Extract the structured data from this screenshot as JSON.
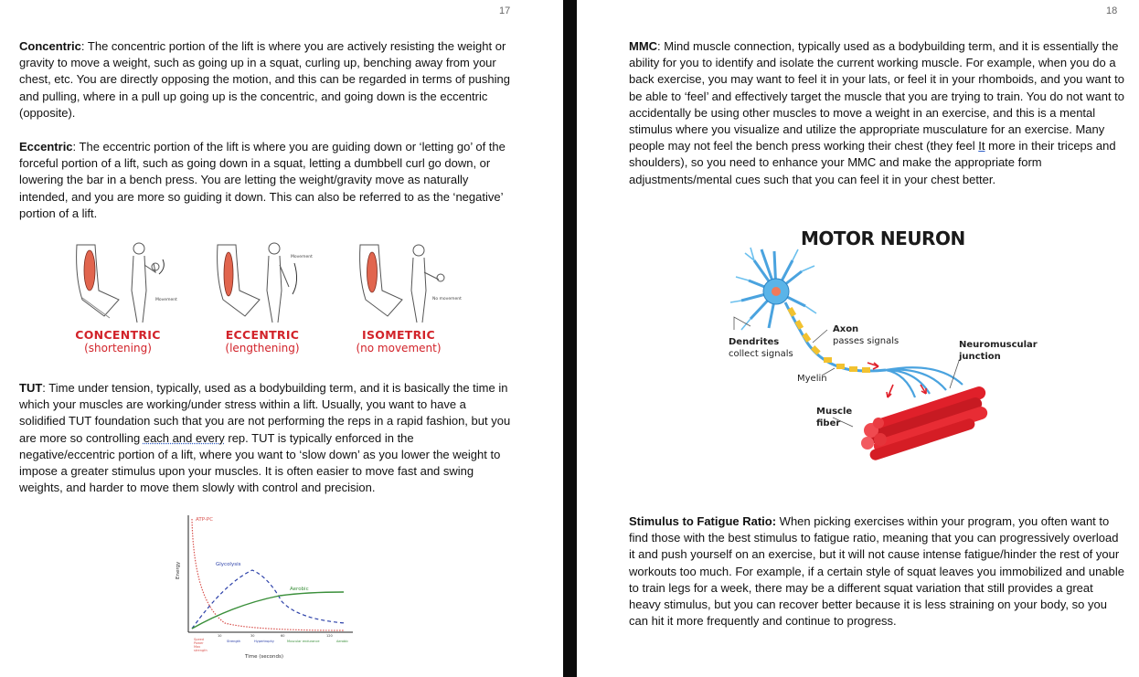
{
  "left_page": {
    "page_number": "17",
    "concentric": {
      "term": "Concentric",
      "text": ": The concentric portion of the lift is where you are actively resisting the weight or gravity to move a weight, such as going up in a squat, curling up, benching away from your chest, etc. You are directly opposing the motion, and this can be regarded in terms of pushing and pulling, where in a pull up going up is the concentric, and going down is the eccentric (opposite)."
    },
    "eccentric": {
      "term": "Eccentric",
      "text": ": The eccentric portion of the lift is where you are guiding down or ‘letting go’ of the forceful portion of a lift, such as going down in a squat, letting a dumbbell curl go down, or lowering the bar in a bench press. You are letting the weight/gravity move as naturally intended, and you are more so guiding it down. This can also be referred to as the ‘negative’ portion of a lift."
    },
    "muscle_figure": {
      "labels": [
        {
          "title": "CONCENTRIC",
          "sub": "(shortening)"
        },
        {
          "title": "ECCENTRIC",
          "sub": "(lengthening)"
        },
        {
          "title": "ISOMETRIC",
          "sub": "(no movement)"
        }
      ],
      "small_labels": [
        "Movement",
        "Movement",
        "No movement"
      ],
      "colors": {
        "label": "#d2232a",
        "muscle": "#e1654e"
      }
    },
    "tut": {
      "term": "TUT",
      "text_before": ": Time under tension, typically, used as a bodybuilding term, and it is basically the time in which your muscles are working/under stress within a lift. Usually, you want to have a solidified TUT foundation such that you are not performing the reps in a rapid fashion, but you are more so controlling ",
      "text_underlined": "each and every",
      "text_after": " rep. TUT is typically enforced in the negative/eccentric portion of a lift, where you want to ‘slow down’ as you lower the weight to impose a greater stimulus upon your muscles. It is often easier to move fast and swing weights, and harder to move them slowly with control and precision."
    },
    "energy_chart": {
      "y_label": "Energy",
      "x_label": "Time (seconds)",
      "curve_labels": [
        "ATP-PC",
        "Glycolysis",
        "Aerobic"
      ],
      "x_ticks": [
        "10",
        "30",
        "60",
        "120"
      ],
      "bottom_labels": [
        "Speed\nPower\nMax\nstrength",
        "Strength",
        "Hypertrophy",
        "Muscular endurance",
        "Aerobic"
      ],
      "colors": {
        "atp": "#d9534f",
        "glycolysis": "#2a3fa8",
        "aerobic": "#3a8f3a"
      }
    }
  },
  "right_page": {
    "page_number": "18",
    "mmc": {
      "term": "MMC",
      "text_before": ": Mind muscle connection, typically used as a bodybuilding term, and it is essentially the ability for you to identify and isolate the current working muscle. For example, when you do a back exercise, you may want to feel it in your lats, or feel it in your rhomboids, and you want to be able to ‘feel’ and effectively target the muscle that you are trying to train. You do not want to accidentally be using other muscles to move a weight in an exercise, and this is a mental stimulus where you visualize and utilize the appropriate musculature for an exercise. Many people may not feel the bench press working their chest (they feel ",
      "text_underlined": "It",
      "text_after": " more in their triceps and shoulders), so you need to enhance your MMC and make the appropriate form adjustments/mental cues such that you can feel it in your chest better."
    },
    "neuron_figure": {
      "title": "MOTOR NEURON",
      "dendrites": {
        "bold": "Dendrites",
        "text": "collect signals"
      },
      "axon": {
        "bold": "Axon",
        "text": "passes signals"
      },
      "junction": {
        "bold": "Neuromuscular",
        "bold2": "junction"
      },
      "myelin": "Myelin",
      "fiber": {
        "bold": "Muscle",
        "bold2": "fiber"
      },
      "colors": {
        "neuron": "#4aa3df",
        "myelin": "#f2c230",
        "muscle": "#e0202a",
        "arrow": "#e0202a"
      }
    },
    "stf": {
      "term": "Stimulus to Fatigue Ratio:",
      "text": " When picking exercises within your program, you often want to find those with the best stimulus to fatigue ratio, meaning that you can progressively overload it and push yourself on an exercise, but it will not cause intense fatigue/hinder the rest of your workouts too much. For example, if a certain style of squat leaves you immobilized and unable to train legs for a week, there may be a different squat variation that still provides a great heavy stimulus, but you can recover better because it is less straining on your body, so you can hit it more frequently and continue to progress."
    }
  }
}
